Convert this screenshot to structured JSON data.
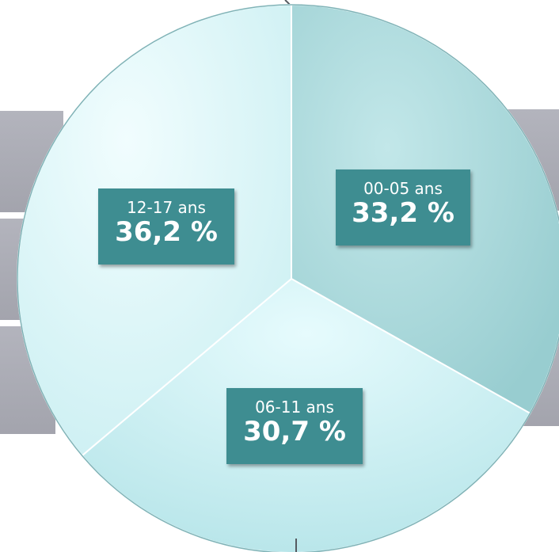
{
  "chart_data": {
    "type": "pie",
    "categories": [
      "00-05 ans",
      "06-11 ans",
      "12-17 ans"
    ],
    "values": [
      33.2,
      30.7,
      36.2
    ],
    "value_labels": [
      "33,2 %",
      "30,7 %",
      "36,2 %"
    ],
    "title": "",
    "colors": [
      "#a9d8da",
      "#d0f3f6",
      "#e0f8fa"
    ],
    "label_box_color": "#3e8d91",
    "legend": "none",
    "background_band_color": "#aeafb8"
  }
}
